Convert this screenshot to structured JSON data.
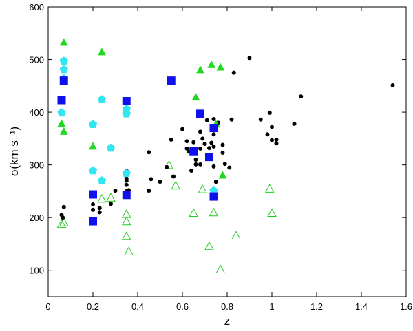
{
  "chart_data": {
    "type": "scatter",
    "title": "",
    "xlabel": "z",
    "ylabel": "σ(km s⁻¹)",
    "xlim": [
      0,
      1.6
    ],
    "ylim": [
      50,
      600
    ],
    "x_ticks": [
      0,
      0.2,
      0.4,
      0.6,
      0.8,
      1,
      1.2,
      1.4,
      1.6
    ],
    "x_tick_labels": [
      "0",
      "0.2",
      "0.4",
      "0.6",
      "0.8",
      "1",
      "1.2",
      "1.4",
      "1.6"
    ],
    "y_ticks": [
      100,
      200,
      300,
      400,
      500,
      600
    ],
    "y_tick_labels": [
      "100",
      "200",
      "300",
      "400",
      "500",
      "600"
    ],
    "grid": false,
    "colors": {
      "black_circle": "#000000",
      "blue_square": "#1010ee",
      "cyan_pentagon": "#33e5f0",
      "green_triangle": "#20d820",
      "green_open_triangle": "#22cc22"
    },
    "series": [
      {
        "marker": "circle-filled",
        "color": "#000000",
        "points": [
          [
            0.06,
            205
          ],
          [
            0.065,
            200
          ],
          [
            0.07,
            220
          ],
          [
            0.2,
            215
          ],
          [
            0.2,
            225
          ],
          [
            0.23,
            210
          ],
          [
            0.23,
            218
          ],
          [
            0.28,
            226
          ],
          [
            0.3,
            251
          ],
          [
            0.35,
            250
          ],
          [
            0.35,
            262
          ],
          [
            0.35,
            270
          ],
          [
            0.35,
            274
          ],
          [
            0.35,
            289
          ],
          [
            0.36,
            252
          ],
          [
            0.45,
            251
          ],
          [
            0.46,
            273
          ],
          [
            0.5,
            268
          ],
          [
            0.45,
            324
          ],
          [
            0.53,
            296
          ],
          [
            0.55,
            348
          ],
          [
            0.56,
            278
          ],
          [
            0.6,
            368
          ],
          [
            0.62,
            345
          ],
          [
            0.62,
            331
          ],
          [
            0.63,
            325
          ],
          [
            0.64,
            289
          ],
          [
            0.65,
            343
          ],
          [
            0.66,
            310
          ],
          [
            0.66,
            301
          ],
          [
            0.68,
            301
          ],
          [
            0.68,
            331
          ],
          [
            0.68,
            363
          ],
          [
            0.69,
            350
          ],
          [
            0.7,
            340
          ],
          [
            0.71,
            385
          ],
          [
            0.72,
            332
          ],
          [
            0.73,
            342
          ],
          [
            0.74,
            335
          ],
          [
            0.74,
            387
          ],
          [
            0.74,
            358
          ],
          [
            0.74,
            297
          ],
          [
            0.75,
            268
          ],
          [
            0.76,
            380
          ],
          [
            0.78,
            338
          ],
          [
            0.78,
            323
          ],
          [
            0.79,
            302
          ],
          [
            0.81,
            295
          ],
          [
            0.82,
            386
          ],
          [
            0.83,
            475
          ],
          [
            0.9,
            503
          ],
          [
            0.95,
            386
          ],
          [
            0.98,
            358
          ],
          [
            0.99,
            399
          ],
          [
            1.0,
            372
          ],
          [
            1.0,
            347
          ],
          [
            1.02,
            348
          ],
          [
            1.02,
            341
          ],
          [
            1.1,
            378
          ],
          [
            1.13,
            430
          ],
          [
            1.54,
            451
          ]
        ]
      },
      {
        "marker": "square-filled",
        "color": "#1010ee",
        "points": [
          [
            0.06,
            423
          ],
          [
            0.07,
            460
          ],
          [
            0.2,
            244
          ],
          [
            0.2,
            193
          ],
          [
            0.35,
            421
          ],
          [
            0.35,
            243
          ],
          [
            0.55,
            460
          ],
          [
            0.65,
            326
          ],
          [
            0.68,
            397
          ],
          [
            0.72,
            315
          ],
          [
            0.74,
            370
          ],
          [
            0.74,
            240
          ]
        ]
      },
      {
        "marker": "pentagon-filled",
        "color": "#33e5f0",
        "points": [
          [
            0.06,
            399
          ],
          [
            0.07,
            497
          ],
          [
            0.07,
            481
          ],
          [
            0.07,
            464
          ],
          [
            0.2,
            377
          ],
          [
            0.2,
            289
          ],
          [
            0.24,
            424
          ],
          [
            0.24,
            270
          ],
          [
            0.28,
            332
          ],
          [
            0.35,
            406
          ],
          [
            0.35,
            397
          ],
          [
            0.35,
            284
          ],
          [
            0.74,
            251
          ]
        ]
      },
      {
        "marker": "triangle-filled",
        "color": "#20d820",
        "points": [
          [
            0.06,
            378
          ],
          [
            0.07,
            532
          ],
          [
            0.07,
            363
          ],
          [
            0.2,
            335
          ],
          [
            0.24,
            514
          ],
          [
            0.66,
            428
          ],
          [
            0.68,
            480
          ],
          [
            0.73,
            490
          ],
          [
            0.75,
            377
          ],
          [
            0.77,
            485
          ],
          [
            0.78,
            280
          ]
        ]
      },
      {
        "marker": "triangle-open",
        "color": "#22cc22",
        "points": [
          [
            0.06,
            187
          ],
          [
            0.07,
            190
          ],
          [
            0.24,
            235
          ],
          [
            0.28,
            237
          ],
          [
            0.35,
            206
          ],
          [
            0.35,
            192
          ],
          [
            0.35,
            164
          ],
          [
            0.36,
            135
          ],
          [
            0.54,
            299
          ],
          [
            0.57,
            260
          ],
          [
            0.65,
            208
          ],
          [
            0.69,
            253
          ],
          [
            0.72,
            145
          ],
          [
            0.74,
            209
          ],
          [
            0.77,
            101
          ],
          [
            0.84,
            165
          ],
          [
            0.99,
            254
          ],
          [
            1.0,
            208
          ]
        ]
      }
    ]
  }
}
